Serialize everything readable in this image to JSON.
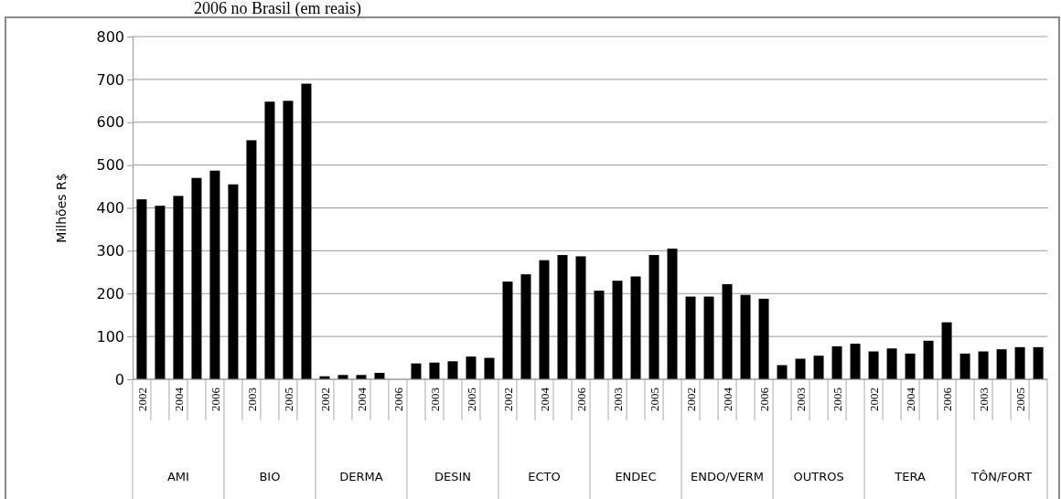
{
  "chart_data": {
    "type": "bar",
    "title": "2006 no Brasil (em reais)",
    "ylabel": "Milhões R$",
    "categories": [
      "2002",
      null,
      "2004",
      null,
      "2006",
      null,
      "2003",
      null,
      "2005",
      null,
      "2002",
      null,
      "2004",
      null,
      "2006",
      null,
      "2003",
      null,
      "2005",
      null,
      "2002",
      null,
      "2004",
      null,
      "2006",
      null,
      "2003",
      null,
      "2005",
      null,
      "2002",
      null,
      "2004",
      null,
      "2006",
      null,
      "2003",
      null,
      "2005",
      null,
      "2002",
      null,
      "2004",
      null,
      "2006",
      null,
      "2003",
      null,
      "2005",
      null
    ],
    "values": [
      420,
      405,
      428,
      470,
      487,
      455,
      558,
      648,
      650,
      690,
      7,
      10,
      10,
      15,
      0,
      37,
      39,
      42,
      53,
      50,
      228,
      245,
      278,
      290,
      287,
      207,
      230,
      240,
      290,
      305,
      193,
      193,
      222,
      197,
      188,
      33,
      48,
      55,
      77,
      83,
      65,
      72,
      60,
      90,
      133,
      60,
      65,
      70,
      75,
      75
    ],
    "color": "#000000",
    "ylim": [
      0,
      800
    ],
    "yticks": [
      0,
      100,
      200,
      300,
      400,
      500,
      600,
      700,
      800
    ],
    "grid": "y",
    "annotations": [
      "AMI",
      "BIO",
      "DERMA",
      "DESIN",
      "ECTO",
      "ENDEC",
      "ENDO/VERM",
      "OUTROS",
      "TERA",
      "TÔN/FORT"
    ]
  }
}
